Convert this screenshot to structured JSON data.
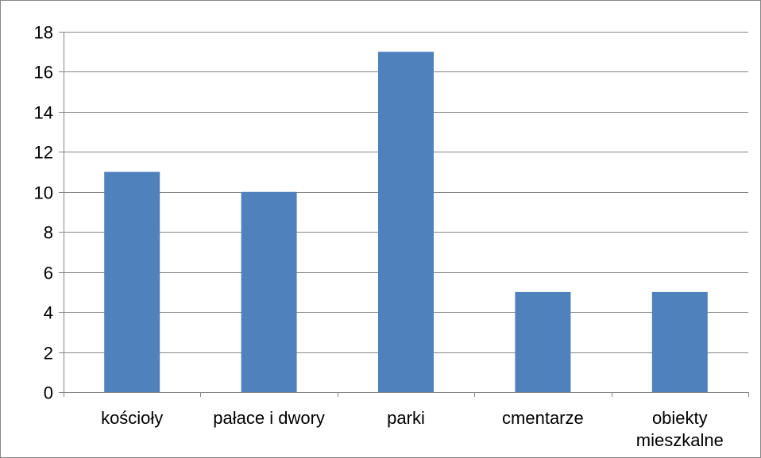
{
  "chart_data": {
    "type": "bar",
    "categories": [
      [
        "kościoły"
      ],
      [
        "pałace i dwory"
      ],
      [
        "parki"
      ],
      [
        "cmentarze"
      ],
      [
        "obiekty",
        "mieszkalne"
      ]
    ],
    "values": [
      11,
      10,
      17,
      5,
      5
    ],
    "ylim": [
      0,
      18
    ],
    "yticks": [
      0,
      2,
      4,
      6,
      8,
      10,
      12,
      14,
      16,
      18
    ],
    "grid": true,
    "legend": "none",
    "colors": {
      "bar": "#4F81BD",
      "grid": "#868686",
      "axis": "#868686",
      "frame": "#868686"
    }
  }
}
